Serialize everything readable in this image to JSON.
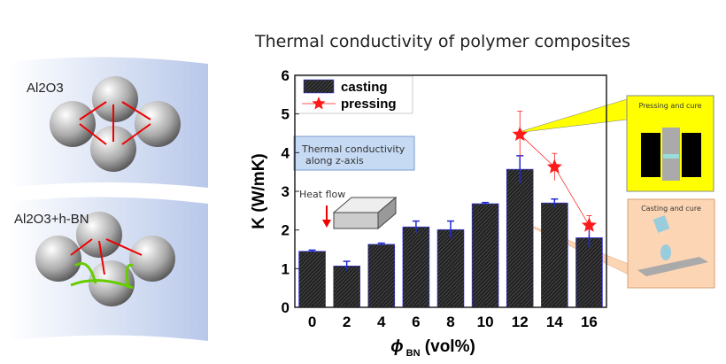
{
  "figure_title": "Thermal conductivity of polymer composites",
  "left_panels": {
    "top_label": "Al2O3",
    "bottom_label": "Al2O3+h-BN"
  },
  "annotations": {
    "box_text_line1": "Thermal conductivity",
    "box_text_line2": "along z-axis",
    "heat_flow": "Heat flow"
  },
  "insets": {
    "pressing": "Pressing and cure",
    "casting": "Casting and cure"
  },
  "colors": {
    "bar": "#333333",
    "pressing": "#ff1a1a",
    "error_bar": "#1f2bd6",
    "pressing_inset": "#ffff00",
    "casting_inset": "#fcd5b4"
  },
  "chart_data": {
    "type": "bar",
    "title": "Thermal conductivity of polymer composites",
    "xlabel": "ϕ BN (vol%)",
    "xlabel_symbol": "ϕ",
    "xlabel_sub": "BN",
    "xlabel_unit": "(vol%)",
    "ylabel": "K (W/mK)",
    "ylim": [
      0,
      6
    ],
    "yticks": [
      "0",
      "1",
      "2",
      "3",
      "4",
      "5",
      "6"
    ],
    "categories": [
      "0",
      "2",
      "4",
      "6",
      "8",
      "10",
      "12",
      "14",
      "16"
    ],
    "legend_position": "top-left",
    "series": [
      {
        "name": "casting",
        "type": "bar",
        "values": [
          1.45,
          1.07,
          1.63,
          2.08,
          2.01,
          2.68,
          3.57,
          2.7,
          1.8
        ],
        "errors": [
          0.03,
          0.12,
          0.03,
          0.15,
          0.22,
          0.03,
          0.35,
          0.1,
          0.25
        ]
      },
      {
        "name": "pressing",
        "type": "line-star",
        "x": [
          "12",
          "14",
          "16"
        ],
        "values": [
          4.47,
          3.63,
          2.12
        ],
        "errors": [
          0.6,
          0.35,
          0.25
        ]
      }
    ]
  }
}
